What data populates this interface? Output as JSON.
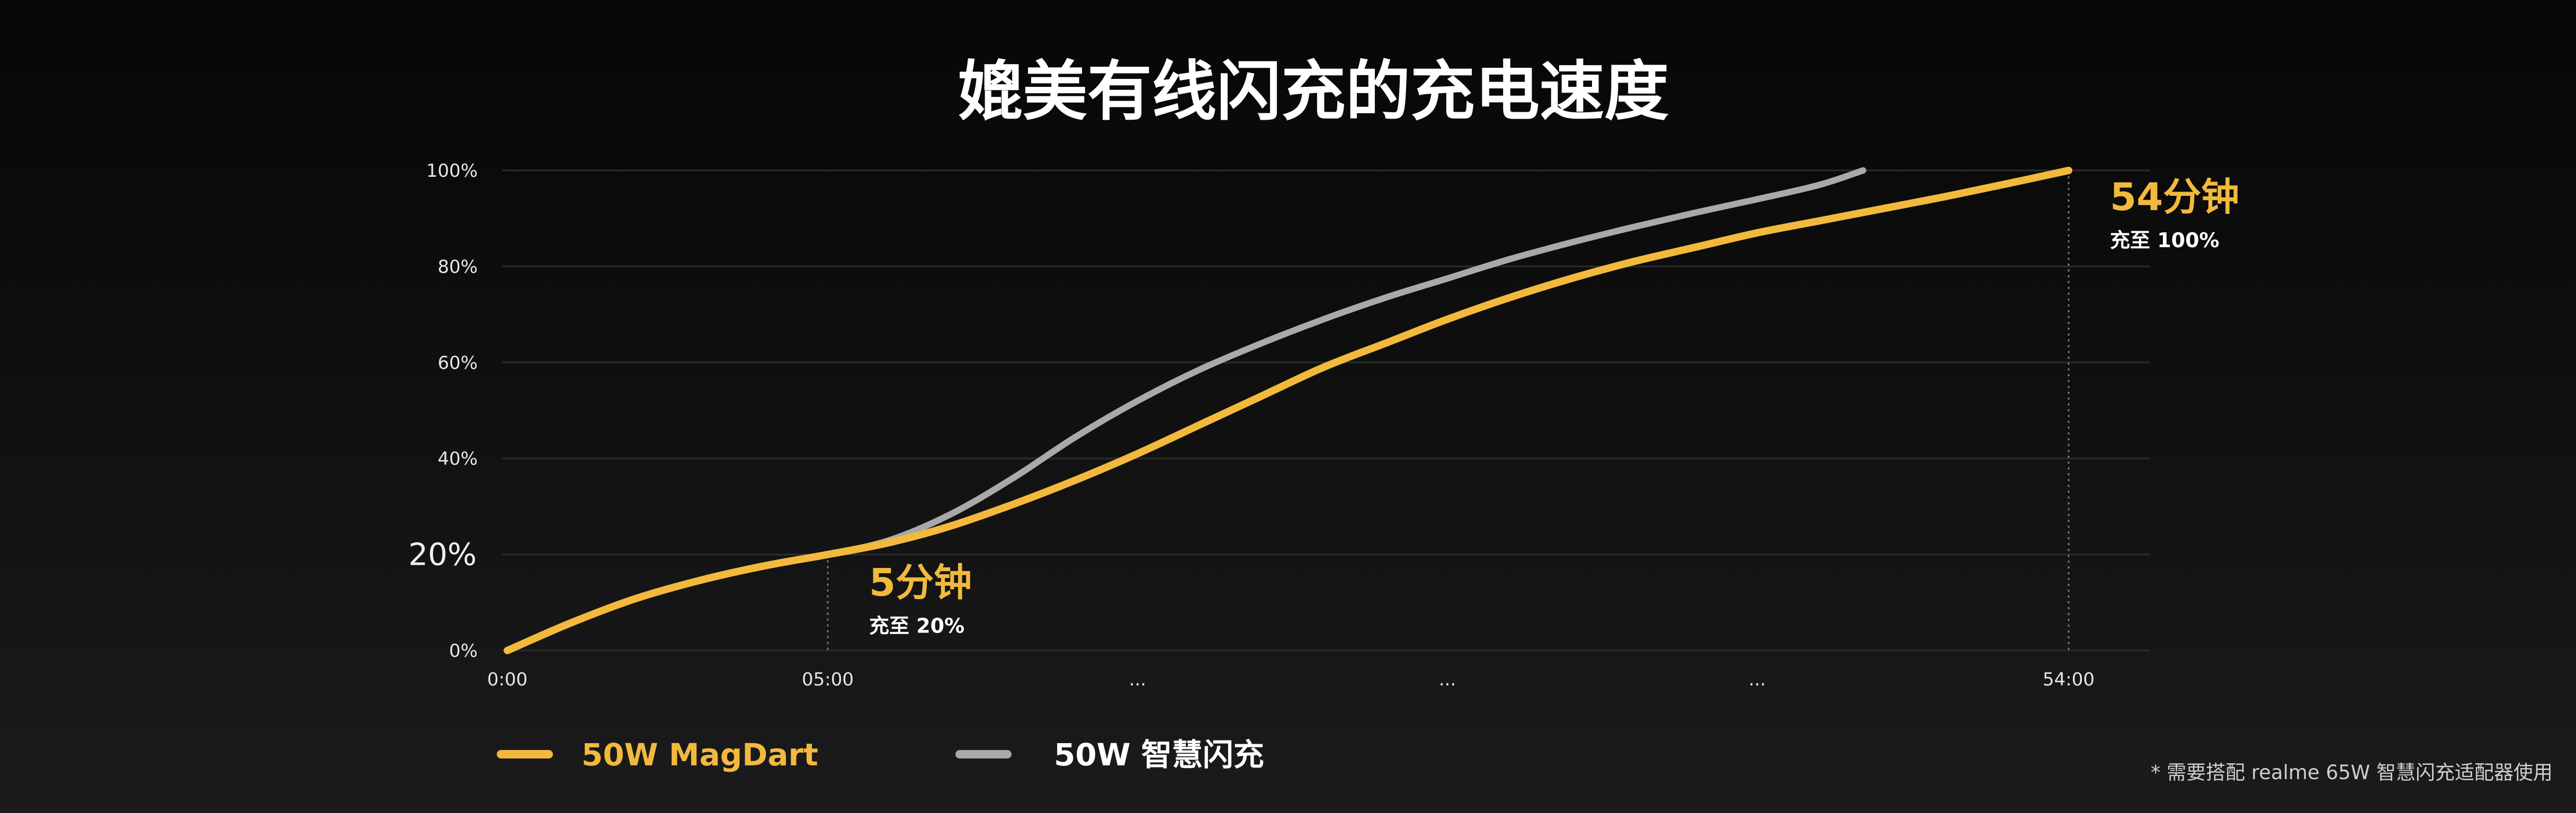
{
  "chart_data": {
    "type": "line",
    "title": "媲美有线闪充的充电速度",
    "xlabel": "",
    "ylabel": "",
    "ylim": [
      0,
      100
    ],
    "y_ticks": [
      {
        "value": 0,
        "label": "0%"
      },
      {
        "value": 20,
        "label": "20%",
        "emphasized": true
      },
      {
        "value": 40,
        "label": "40%"
      },
      {
        "value": 60,
        "label": "60%"
      },
      {
        "value": 80,
        "label": "80%"
      },
      {
        "value": 100,
        "label": "100%"
      }
    ],
    "x_ticks": [
      {
        "value": 0,
        "label": "0:00"
      },
      {
        "value": 1,
        "label": "05:00"
      },
      {
        "value": 2,
        "label": "..."
      },
      {
        "value": 3,
        "label": "..."
      },
      {
        "value": 4,
        "label": "..."
      },
      {
        "value": 5,
        "label": "54:00"
      }
    ],
    "xlim": [
      0,
      5
    ],
    "grid": true,
    "legend_position": "bottom-left",
    "series": [
      {
        "name": "50W MagDart",
        "color": "#f2b93c",
        "points": [
          [
            0,
            0
          ],
          [
            0.2,
            5.8
          ],
          [
            0.4,
            10.8
          ],
          [
            0.6,
            14.6
          ],
          [
            0.8,
            17.6
          ],
          [
            1,
            20
          ],
          [
            1.2,
            22.5
          ],
          [
            1.4,
            26
          ],
          [
            1.6,
            30.5
          ],
          [
            1.8,
            35.5
          ],
          [
            2,
            41
          ],
          [
            2.2,
            47
          ],
          [
            2.4,
            53
          ],
          [
            2.6,
            59
          ],
          [
            2.8,
            64
          ],
          [
            3,
            69
          ],
          [
            3.2,
            73.5
          ],
          [
            3.4,
            77.5
          ],
          [
            3.6,
            81
          ],
          [
            3.8,
            84
          ],
          [
            4,
            87
          ],
          [
            4.2,
            89.5
          ],
          [
            4.4,
            92
          ],
          [
            4.6,
            94.5
          ],
          [
            4.8,
            97.2
          ],
          [
            5,
            100
          ]
        ]
      },
      {
        "name": "50W 智慧闪充",
        "color": "#a9a9ab",
        "points": [
          [
            0,
            0
          ],
          [
            0.2,
            5.8
          ],
          [
            0.4,
            10.8
          ],
          [
            0.6,
            14.6
          ],
          [
            0.8,
            17.6
          ],
          [
            1,
            20
          ],
          [
            1.2,
            23
          ],
          [
            1.4,
            28.5
          ],
          [
            1.6,
            36
          ],
          [
            1.8,
            44.5
          ],
          [
            2,
            52
          ],
          [
            2.2,
            58.5
          ],
          [
            2.4,
            64
          ],
          [
            2.6,
            69
          ],
          [
            2.8,
            73.5
          ],
          [
            3,
            77.5
          ],
          [
            3.2,
            81.5
          ],
          [
            3.4,
            85
          ],
          [
            3.6,
            88.2
          ],
          [
            3.8,
            91.2
          ],
          [
            4,
            94
          ],
          [
            4.2,
            97
          ],
          [
            4.34,
            100
          ]
        ]
      }
    ],
    "annotations": [
      {
        "x": 1,
        "y": 20,
        "main": "5分钟",
        "sub": "充至 20%"
      },
      {
        "x": 5,
        "y": 100,
        "main": "54分钟",
        "sub": "充至 100%"
      }
    ]
  },
  "footnote": "* 需要搭配 realme 65W 智慧闪充适配器使用",
  "colors": {
    "grid": "#2c2c2c",
    "guide": "#7a7a7a",
    "yellow": "#f2b93c",
    "gray": "#a9a9ab"
  }
}
